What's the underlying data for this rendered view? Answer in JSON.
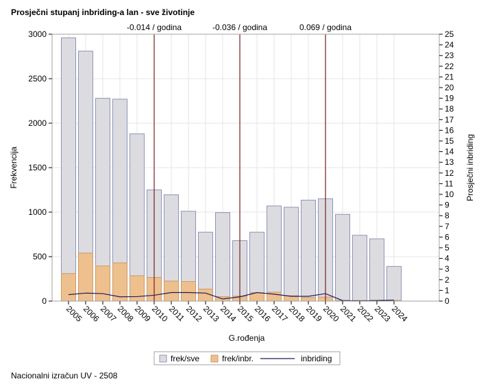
{
  "title": "Prosječni stupanj inbriding-a lan - sve životinje",
  "footnote": "Nacionalni izračun UV - 2508",
  "colors": {
    "bar_all_fill": "#dcdce0",
    "bar_all_stroke": "#8f93b8",
    "bar_inbr_fill": "#eec08e",
    "bar_inbr_stroke": "#c99a6a",
    "line": "#1c1a64",
    "refline": "#7a1a1a",
    "grid": "#e4e4e4",
    "frame": "#a0a0a0"
  },
  "chart_data": {
    "type": "bar",
    "xlabel": "G.rođenja",
    "ylabel": "Frekvencija",
    "y2label": "Prosječni inbriding",
    "ylim": [
      0,
      3000
    ],
    "yticks": [
      0,
      500,
      1000,
      1500,
      2000,
      2500,
      3000
    ],
    "y2lim": [
      0,
      25
    ],
    "y2ticks": [
      0,
      1,
      2,
      3,
      4,
      5,
      6,
      7,
      8,
      9,
      10,
      11,
      12,
      13,
      14,
      15,
      16,
      17,
      18,
      19,
      20,
      21,
      22,
      23,
      24,
      25
    ],
    "grid": true,
    "legend_position": "bottom",
    "categories": [
      "2005",
      "2006",
      "2007",
      "2008",
      "2009",
      "2010",
      "2011",
      "2012",
      "2013",
      "2014",
      "2015",
      "2016",
      "2017",
      "2018",
      "2019",
      "2020",
      "2021",
      "2022",
      "2023",
      "2024"
    ],
    "series": [
      {
        "name": "frek/sve",
        "kind": "bar",
        "values": [
          2960,
          2810,
          2280,
          2270,
          1880,
          1250,
          1195,
          1010,
          775,
          995,
          680,
          775,
          1070,
          1055,
          1135,
          1150,
          975,
          740,
          700,
          390
        ]
      },
      {
        "name": "frek/inbr.",
        "kind": "bar",
        "values": [
          310,
          540,
          395,
          430,
          285,
          265,
          225,
          220,
          135,
          50,
          55,
          95,
          100,
          60,
          40,
          45,
          8,
          8,
          10,
          8
        ]
      },
      {
        "name": "inbriding",
        "kind": "line",
        "axis": "y2",
        "values": [
          0.6,
          0.75,
          0.7,
          0.4,
          0.42,
          0.55,
          0.8,
          0.8,
          0.75,
          0.2,
          0.4,
          0.8,
          0.65,
          0.45,
          0.45,
          0.7,
          0.05,
          0.02,
          0.05,
          0.1
        ]
      }
    ],
    "reference_lines": [
      {
        "x": "2010",
        "label": "-0.014 / godina"
      },
      {
        "x": "2015",
        "label": "-0.036 / godina"
      },
      {
        "x": "2020",
        "label": "0.069 / godina"
      }
    ]
  }
}
